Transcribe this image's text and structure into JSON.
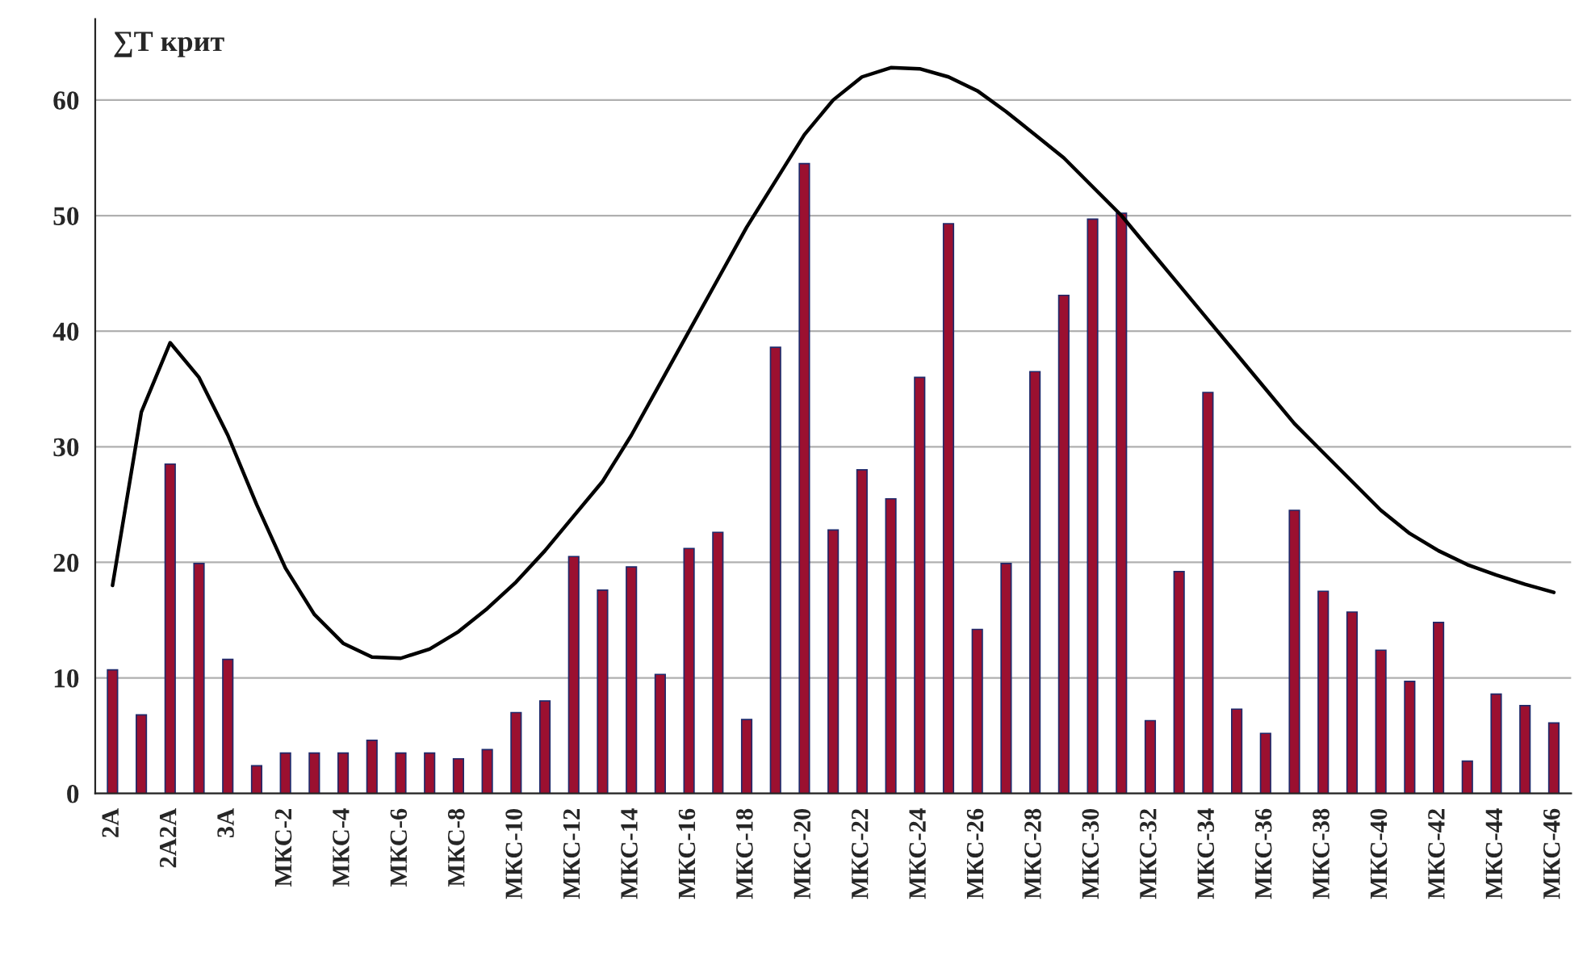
{
  "chart_data": {
    "type": "bar",
    "ylabel": "∑Т крит",
    "categories": [
      "2А",
      null,
      "2А2А",
      null,
      "3А",
      null,
      "МКС-2",
      null,
      "МКС-4",
      null,
      "МКС-6",
      null,
      "МКС-8",
      null,
      "МКС-10",
      null,
      "МКС-12",
      null,
      "МКС-14",
      null,
      "МКС-16",
      null,
      "МКС-18",
      null,
      "МКС-20",
      null,
      "МКС-22",
      null,
      "МКС-24",
      null,
      "МКС-26",
      null,
      "МКС-28",
      null,
      "МКС-30",
      null,
      "МКС-32",
      null,
      "МКС-34",
      null,
      "МКС-36",
      null,
      "МКС-38",
      null,
      "МКС-40",
      null,
      "МКС-42",
      null,
      "МКС-44",
      null,
      "МКС-46"
    ],
    "series": [
      {
        "color": "#9b1030",
        "values": [
          10.7,
          6.8,
          28.5,
          19.9,
          11.6,
          2.4,
          3.5,
          3.5,
          3.5,
          4.6,
          3.5,
          3.5,
          3.0,
          3.8,
          7.0,
          8.0,
          20.5,
          17.6,
          19.6,
          10.3,
          21.2,
          22.6,
          6.4,
          38.6,
          54.5,
          22.8,
          28.0,
          25.5,
          36.0,
          49.3,
          14.2,
          19.9,
          36.5,
          43.1,
          49.7,
          50.2,
          6.3,
          19.2,
          34.7,
          7.3,
          5.2,
          24.5,
          17.5,
          15.7,
          12.4,
          9.7,
          14.8,
          2.8,
          8.6,
          7.6,
          6.1
        ]
      },
      {
        "type": "line",
        "color": "#000000",
        "values": [
          18,
          33,
          39,
          36,
          31,
          25,
          19.5,
          15.5,
          13,
          11.8,
          11.7,
          12.5,
          14,
          16,
          18.3,
          21,
          24,
          27,
          31,
          35.5,
          40,
          44.5,
          49,
          53,
          57,
          60,
          62,
          62.8,
          62.7,
          62,
          60.8,
          59,
          57,
          55,
          52.5,
          50,
          47,
          44,
          41,
          38,
          35,
          32,
          29.5,
          27,
          24.5,
          22.5,
          21,
          19.8,
          18.9,
          18.1,
          17.4
        ]
      }
    ],
    "ylim": [
      0,
      67
    ],
    "yticks": [
      0,
      10,
      20,
      30,
      40,
      50,
      60
    ],
    "grid": "y",
    "legend": false,
    "marker": "none",
    "line_style": "solid"
  }
}
